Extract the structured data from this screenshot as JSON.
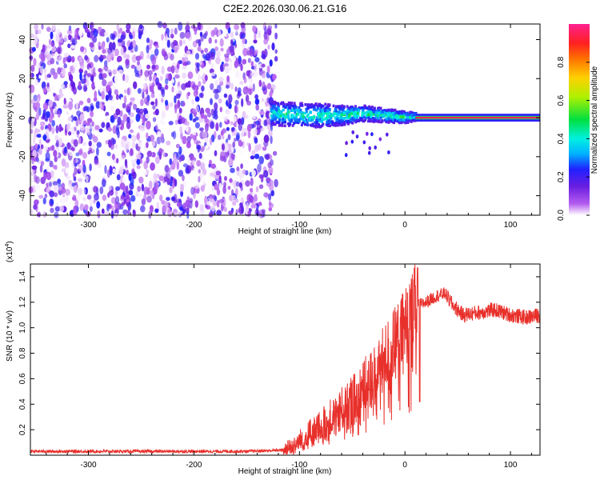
{
  "title": "C2E2.2026.030.06.21.G16",
  "chart_data": [
    {
      "type": "heatmap",
      "xlabel": "Height of straight line (km)",
      "ylabel": "Frequency (Hz)",
      "xlim": [
        -355,
        128
      ],
      "ylim": [
        -50,
        48
      ],
      "xticks": [
        -300,
        -200,
        -100,
        0,
        100
      ],
      "yticks": [
        -40,
        -20,
        0,
        20,
        40
      ],
      "colorbar": {
        "label": "Normalized spectral amplitude",
        "range": [
          0,
          1
        ],
        "ticks": [
          "0.0",
          "0.2",
          "0.4",
          "0.6",
          "0.8"
        ]
      },
      "regions": [
        {
          "name": "noise",
          "x_range": [
            -355,
            -128
          ],
          "freq_range": [
            -50,
            48
          ],
          "amplitude_range": [
            0.0,
            0.25
          ]
        },
        {
          "name": "signal-band",
          "x_range": [
            -128,
            10
          ],
          "freq_center": [
            [
              -128,
              2
            ],
            [
              -90,
              1
            ],
            [
              -60,
              1
            ],
            [
              -40,
              2
            ],
            [
              -20,
              1
            ],
            [
              0,
              0
            ],
            [
              10,
              0.5
            ]
          ],
          "half_width_hz": [
            [
              -128,
              6
            ],
            [
              -80,
              6
            ],
            [
              -40,
              4
            ],
            [
              0,
              3
            ],
            [
              10,
              2
            ]
          ],
          "amplitude_range": [
            0.15,
            0.5
          ]
        },
        {
          "name": "clean-line",
          "x_range": [
            10,
            128
          ],
          "freq_center": 0,
          "half_width_hz": 2,
          "amplitude_peak": 0.95
        }
      ]
    },
    {
      "type": "line",
      "xlabel": "Height of straight line (km)",
      "ylabel": "SNR (10 * v/v)",
      "yunit_label": "(x10",
      "yunit_exp": "4",
      "xlim": [
        -355,
        128
      ],
      "ylim": [
        0,
        1.5
      ],
      "xticks": [
        -300,
        -200,
        -100,
        0,
        100
      ],
      "yticks": [
        "0.2",
        "0.4",
        "0.6",
        "0.8",
        "1.0",
        "1.2",
        "1.4"
      ],
      "series": [
        {
          "name": "SNR",
          "color": "#e8302b",
          "trend": [
            [
              -355,
              0.03
            ],
            [
              -150,
              0.03
            ],
            [
              -115,
              0.04
            ],
            [
              -105,
              0.08
            ],
            [
              -95,
              0.14
            ],
            [
              -80,
              0.22
            ],
            [
              -65,
              0.32
            ],
            [
              -50,
              0.42
            ],
            [
              -40,
              0.52
            ],
            [
              -30,
              0.62
            ],
            [
              -22,
              0.72
            ],
            [
              -12,
              0.85
            ],
            [
              -4,
              0.95
            ],
            [
              3,
              1.05
            ],
            [
              10,
              1.17
            ],
            [
              20,
              1.2
            ],
            [
              30,
              1.25
            ],
            [
              38,
              1.27
            ],
            [
              45,
              1.18
            ],
            [
              55,
              1.1
            ],
            [
              70,
              1.12
            ],
            [
              85,
              1.14
            ],
            [
              100,
              1.1
            ],
            [
              115,
              1.08
            ],
            [
              128,
              1.1
            ]
          ],
          "peak": {
            "x": 12,
            "y": 1.47
          }
        }
      ]
    }
  ],
  "colors": {
    "line": "#e8302b",
    "colormap": [
      "#ffffff",
      "#b45cf0",
      "#6a1ee0",
      "#2020ff",
      "#00b0ff",
      "#00f0e0",
      "#00e040",
      "#b0f000",
      "#ffd000",
      "#ff7000",
      "#ff2020",
      "#ff2090"
    ]
  }
}
